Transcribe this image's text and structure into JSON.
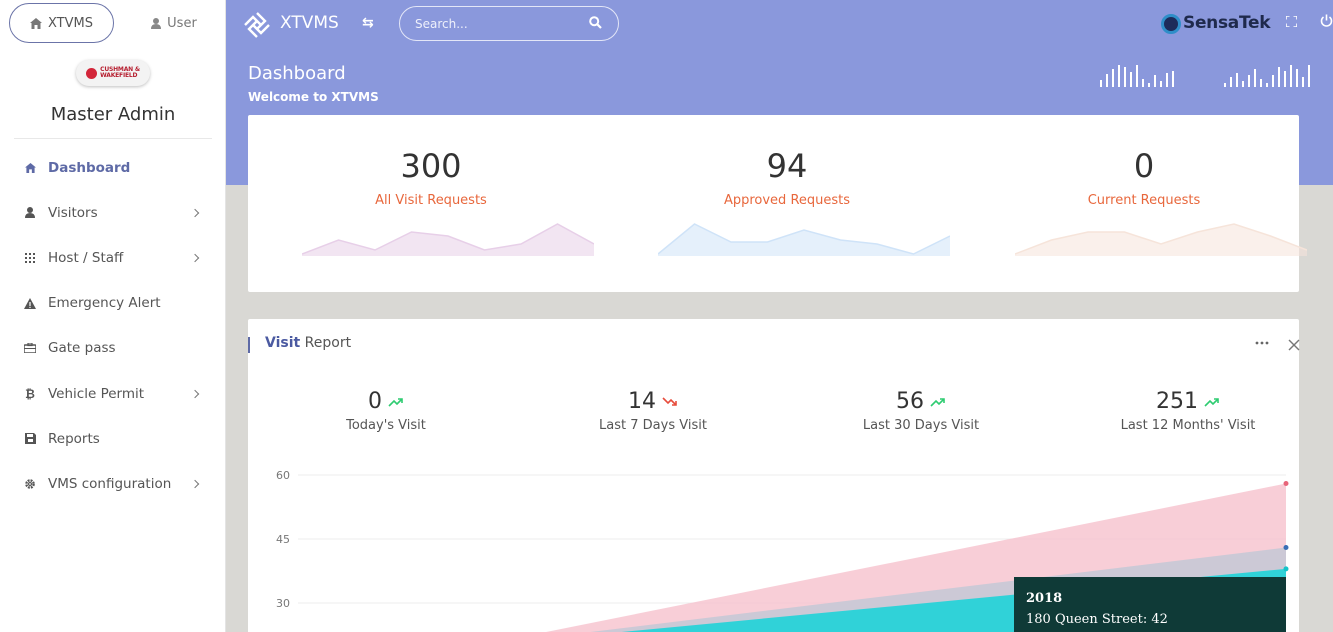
{
  "sidebar": {
    "tab_home": "XTVMS",
    "tab_user": "User",
    "logo_line1": "CUSHMAN &",
    "logo_line2": "WAKEFIELD",
    "admin_name": "Master Admin",
    "items": [
      {
        "label": "Dashboard",
        "icon": "home-icon",
        "active": true
      },
      {
        "label": "Visitors",
        "icon": "user-icon",
        "has_submenu": true
      },
      {
        "label": "Host / Staff",
        "icon": "grid-icon",
        "has_submenu": true
      },
      {
        "label": "Emergency Alert",
        "icon": "warning-icon"
      },
      {
        "label": "Gate pass",
        "icon": "briefcase-icon"
      },
      {
        "label": "Vehicle Permit",
        "icon": "bitcoin-icon",
        "has_submenu": true
      },
      {
        "label": "Reports",
        "icon": "save-icon"
      },
      {
        "label": "VMS configuration",
        "icon": "gear-icon",
        "has_submenu": true
      }
    ]
  },
  "header": {
    "brand": "XTVMS",
    "search_placeholder": "Search...",
    "partner_logo": "SensaTek",
    "accent_color": "#8a98dc"
  },
  "page": {
    "title": "Dashboard",
    "subtitle": "Welcome to XTVMS"
  },
  "stats": [
    {
      "value": "300",
      "label": "All Visit Requests",
      "spark_color": "#e7cfe8",
      "spark": [
        0,
        14,
        4,
        22,
        18,
        4,
        10,
        30,
        10
      ]
    },
    {
      "value": "94",
      "label": "Approved Requests",
      "spark_color": "#cfe3f8",
      "spark": [
        0,
        30,
        12,
        12,
        24,
        14,
        10,
        0,
        18
      ]
    },
    {
      "value": "0",
      "label": "Current Requests",
      "spark_color": "#f6e4da",
      "spark": [
        0,
        14,
        22,
        22,
        10,
        22,
        30,
        18,
        4
      ]
    }
  ],
  "report": {
    "title_bold": "Visit",
    "title_rest": "Report",
    "kpis": [
      {
        "value": "0",
        "label": "Today's Visit",
        "trend": "up"
      },
      {
        "value": "14",
        "label": "Last 7 Days Visit",
        "trend": "down"
      },
      {
        "value": "56",
        "label": "Last 30 Days Visit",
        "trend": "up"
      },
      {
        "value": "251",
        "label": "Last 12 Months' Visit",
        "trend": "up"
      }
    ],
    "tooltip": {
      "title": "2018",
      "line": "180 Queen Street: 42"
    }
  },
  "chart_data": {
    "type": "area",
    "y_ticks": [
      "60",
      "45",
      "30"
    ],
    "ylim": [
      30,
      60
    ],
    "series": [
      {
        "color": "#f7c6d0",
        "values": [
          20,
          58
        ]
      },
      {
        "color": "#c7c9d6",
        "values": [
          20,
          43
        ]
      },
      {
        "color": "#1fd3d8",
        "values": [
          20,
          38
        ]
      }
    ]
  }
}
